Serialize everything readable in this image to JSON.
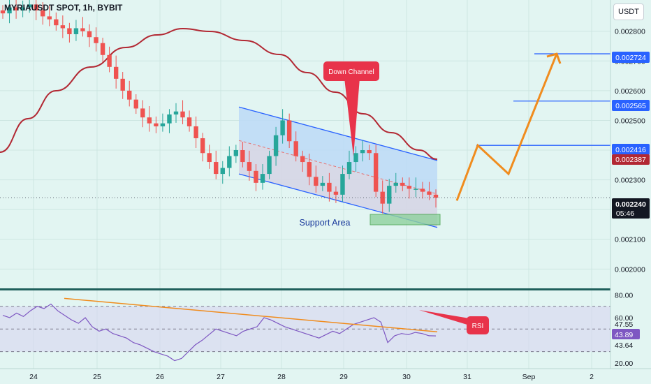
{
  "header": {
    "title": "MYRIAUSDT SPOT, 1h, BYBIT",
    "currency_button": "USDT"
  },
  "annotations": {
    "down_channel": "Down Channel",
    "support_area": "Support Area",
    "rsi": "RSI"
  },
  "price_badges": {
    "target_top": "0.002724",
    "target_mid": "0.002565",
    "target_low": "0.002416",
    "ma_value": "0.002387",
    "current": "0.002240",
    "countdown": "05:46"
  },
  "rsi_badges": {
    "upper": "47.55",
    "value": "43.89",
    "lower": "43.64"
  },
  "colors": {
    "background": "#e2f5f2",
    "bull": "#26a69a",
    "bear": "#ef5350",
    "ma": "#b22833",
    "channel": "#2962ff",
    "projection": "#f08c1e",
    "label_red": "#e8334a",
    "rsi_line": "#7e57c2",
    "support_zone": "#66bb6a"
  },
  "chart_data": [
    {
      "type": "candlestick",
      "title": "MYRIAUSDT SPOT, 1h, BYBIT",
      "x_tick_labels": [
        "24",
        "25",
        "26",
        "27",
        "28",
        "29",
        "30",
        "31",
        "Sep",
        "2"
      ],
      "y_tick_labels": [
        "0.002000",
        "0.002100",
        "0.002200",
        "0.002300",
        "0.002400",
        "0.002500",
        "0.002600",
        "0.002700",
        "0.002800"
      ],
      "ylim": [
        0.001935,
        0.002905
      ],
      "grid": true,
      "last_price": 0.00224,
      "candles_approx_close": [
        0.00286,
        0.00288,
        0.00287,
        0.00288,
        0.00289,
        0.00287,
        0.00285,
        0.00284,
        0.00282,
        0.00281,
        0.00279,
        0.00281,
        0.0028,
        0.00278,
        0.00276,
        0.00272,
        0.00268,
        0.00264,
        0.0026,
        0.00257,
        0.00254,
        0.00251,
        0.00249,
        0.00248,
        0.00249,
        0.00252,
        0.00253,
        0.00251,
        0.00248,
        0.00244,
        0.00239,
        0.00236,
        0.00232,
        0.00234,
        0.00238,
        0.0024,
        0.00236,
        0.00233,
        0.00229,
        0.00232,
        0.00238,
        0.00245,
        0.0025,
        0.00243,
        0.00238,
        0.00236,
        0.00231,
        0.00228,
        0.00229,
        0.00226,
        0.00225,
        0.00232,
        0.00236,
        0.00239,
        0.0024,
        0.00239,
        0.00226,
        0.00222,
        0.00228,
        0.00229,
        0.00228,
        0.00227,
        0.00227,
        0.00226,
        0.00225,
        0.00224
      ],
      "moving_average_label": "0.002387",
      "channel": {
        "upper_from": 0.002545,
        "upper_to": 0.002365,
        "lower_from": 0.00232,
        "lower_to": 0.00214
      },
      "support_zone": [
        0.002175,
        0.002195
      ],
      "projection_path": [
        0.00223,
        0.002416,
        0.00232,
        0.002724,
        0.00268
      ],
      "horizontal_levels": [
        0.002724,
        0.002565,
        0.002416
      ]
    },
    {
      "type": "line",
      "title": "RSI",
      "y_tick_labels": [
        "20.00",
        "60.00",
        "80.00"
      ],
      "ylim": [
        15,
        84
      ],
      "bands": [
        70,
        30
      ],
      "current_value": 43.89,
      "series_approx": [
        62,
        60,
        64,
        61,
        66,
        70,
        68,
        72,
        66,
        62,
        58,
        55,
        60,
        52,
        48,
        50,
        46,
        44,
        42,
        38,
        36,
        33,
        30,
        28,
        26,
        22,
        24,
        30,
        36,
        40,
        45,
        50,
        48,
        46,
        44,
        48,
        50,
        52,
        60,
        58,
        55,
        52,
        50,
        48,
        46,
        44,
        42,
        45,
        48,
        46,
        50,
        54,
        56,
        58,
        60,
        56,
        38,
        44,
        46,
        45,
        47,
        46,
        44,
        43.89
      ],
      "trendline": [
        77,
        47.5
      ]
    }
  ]
}
